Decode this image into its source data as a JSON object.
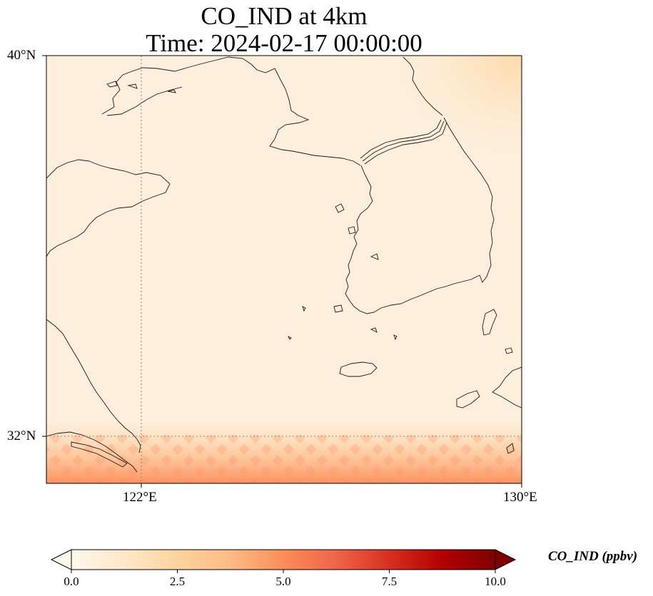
{
  "title": {
    "line1": "CO_IND at 4km",
    "line2": "Time: 2024-02-17 00:00:00"
  },
  "map": {
    "extent": {
      "lon_min": 119.7,
      "lon_max": 130.0,
      "lat_min": 31.0,
      "lat_max": 40.0
    },
    "lat_ticks": [
      {
        "value": 40,
        "label": "40°N"
      },
      {
        "value": 32,
        "label": "32°N"
      }
    ],
    "lon_ticks": [
      {
        "value": 122,
        "label": "122°E"
      },
      {
        "value": 130,
        "label": "130°E"
      }
    ],
    "gridlines": {
      "lat": [
        32
      ],
      "lon": [
        122
      ],
      "style": "dotted"
    },
    "field_description_levels": {
      "background": 0.6,
      "north_east_max": 1.8,
      "south_west_max": 3.5
    }
  },
  "colorbar": {
    "label": "CO_IND (ppbv)",
    "min": 0.0,
    "max": 10.0,
    "extend": "both",
    "colormap": "OrRd",
    "ticks": [
      {
        "value": 0.0,
        "label": "0.0"
      },
      {
        "value": 2.5,
        "label": "2.5"
      },
      {
        "value": 5.0,
        "label": "5.0"
      },
      {
        "value": 7.5,
        "label": "7.5"
      },
      {
        "value": 10.0,
        "label": "10.0"
      }
    ],
    "colors": [
      "#fff7ec",
      "#fee8c8",
      "#fdd49e",
      "#fdbb84",
      "#fc8d59",
      "#ef6548",
      "#d7301f",
      "#b30000",
      "#7f0000"
    ]
  }
}
